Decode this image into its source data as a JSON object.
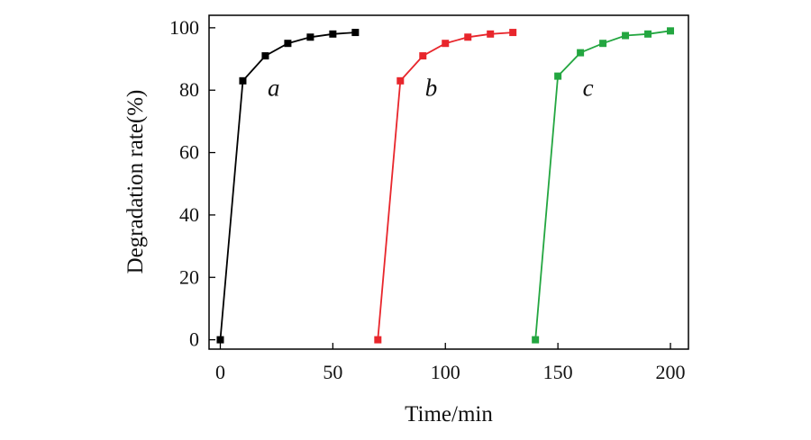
{
  "chart_data": {
    "type": "line",
    "title": "",
    "xlabel": "Time/min",
    "ylabel": "Degradation rate(%)",
    "xlim": [
      -5,
      208
    ],
    "ylim": [
      -3,
      104
    ],
    "xticks": [
      0,
      50,
      100,
      150,
      200
    ],
    "yticks": [
      0,
      20,
      40,
      60,
      80,
      100
    ],
    "grid": false,
    "series": [
      {
        "name": "a",
        "color": "#000000",
        "x": [
          0,
          10,
          20,
          30,
          40,
          50,
          60
        ],
        "y": [
          0,
          83,
          91,
          95,
          97,
          98,
          98.5
        ],
        "label_at": [
          21,
          81
        ]
      },
      {
        "name": "b",
        "color": "#e8262c",
        "x": [
          70,
          80,
          90,
          100,
          110,
          120,
          130
        ],
        "y": [
          0,
          83,
          91,
          95,
          97,
          98,
          98.5
        ],
        "label_at": [
          91,
          81
        ]
      },
      {
        "name": "c",
        "color": "#23a640",
        "x": [
          140,
          150,
          160,
          170,
          180,
          190,
          200
        ],
        "y": [
          0,
          84.5,
          92,
          95,
          97.5,
          98,
          99
        ],
        "label_at": [
          161,
          81
        ]
      }
    ]
  }
}
